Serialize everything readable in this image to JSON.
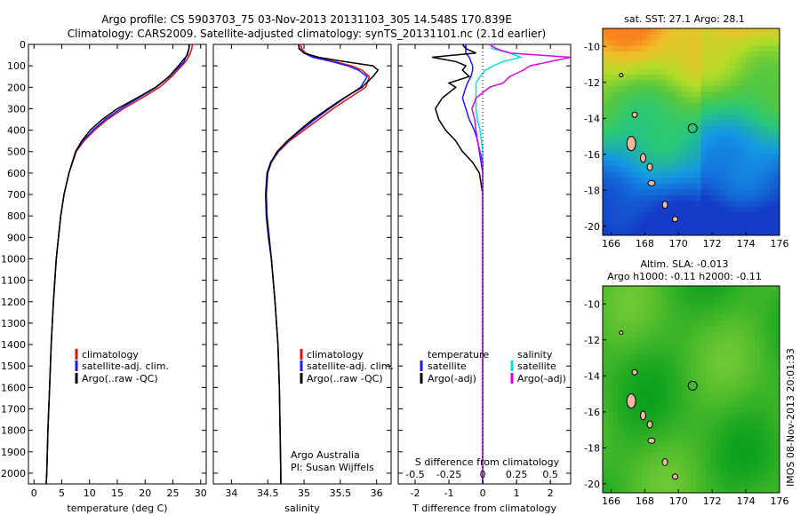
{
  "header": {
    "line1": "Argo profile: CS 5903703_75 03-Nov-2013 20131103_305 14.548S 170.839E",
    "line2": "Climatology: CARS2009. Satellite-adjusted climatology: synTS_20131101.nc (2.1d earlier)"
  },
  "side_text": "IMOS 08-Nov-2013 20:01:33",
  "colors": {
    "climatology": "#e01010",
    "satellite": "#1a1aff",
    "argo": "#000000",
    "sal_satellite": "#00e0e0",
    "sal_argo": "#e000e0",
    "argo_site": "#000000",
    "land": "#f0b8a0"
  },
  "chart_data": [
    {
      "id": "temperature",
      "type": "line",
      "xlabel": "temperature (deg C)",
      "ylabel": "",
      "xlim": [
        -1,
        31
      ],
      "ylim": [
        2050,
        0
      ],
      "xticks": [
        0,
        5,
        10,
        15,
        20,
        25,
        30
      ],
      "yticks": [
        0,
        100,
        200,
        300,
        400,
        500,
        600,
        700,
        800,
        900,
        1000,
        1100,
        1200,
        1300,
        1400,
        1500,
        1600,
        1700,
        1800,
        1900,
        2000
      ],
      "legend": [
        "climatology",
        "satellite-adj. clim.",
        "Argo(..raw -QC)"
      ],
      "depth": [
        0,
        20,
        50,
        80,
        100,
        150,
        200,
        250,
        300,
        350,
        400,
        450,
        500,
        600,
        700,
        800,
        900,
        1000,
        1200,
        1400,
        1600,
        1800,
        2000,
        2050
      ],
      "series": [
        {
          "name": "climatology",
          "color": "#e01010",
          "values": [
            28.5,
            28.4,
            28.0,
            27.3,
            26.6,
            24.8,
            22.6,
            19.4,
            16.1,
            13.2,
            10.9,
            9.0,
            7.6,
            6.3,
            5.4,
            4.8,
            4.4,
            4.0,
            3.5,
            3.1,
            2.8,
            2.5,
            2.3,
            2.2
          ]
        },
        {
          "name": "satellite-adj. clim.",
          "color": "#1a1aff",
          "values": [
            28.0,
            27.9,
            27.5,
            27.0,
            26.3,
            24.4,
            22.0,
            18.8,
            15.6,
            12.8,
            10.6,
            8.8,
            7.5,
            6.3,
            5.4,
            4.8,
            4.4,
            4.0,
            3.5,
            3.1,
            2.8,
            2.5,
            2.3,
            2.2
          ]
        },
        {
          "name": "Argo(..raw -QC)",
          "color": "#000000",
          "values": [
            27.9,
            27.9,
            27.6,
            26.6,
            26.0,
            24.3,
            21.9,
            18.5,
            15.0,
            12.3,
            10.1,
            8.6,
            7.5,
            6.3,
            5.4,
            4.8,
            4.4,
            4.0,
            3.5,
            3.1,
            2.8,
            2.5,
            2.3,
            2.2
          ]
        }
      ]
    },
    {
      "id": "salinity",
      "type": "line",
      "xlabel": "salinity",
      "xlim": [
        33.75,
        36.2
      ],
      "ylim": [
        2050,
        0
      ],
      "xticks": [
        34,
        34.5,
        35,
        35.5,
        36
      ],
      "xticklabels": [
        "34",
        "34.5",
        "35",
        "35.5",
        "36"
      ],
      "legend": [
        "climatology",
        "satellite-adj. clim.",
        "Argo(..raw -QC)"
      ],
      "annotation": [
        "Argo Australia",
        "PI: Susan Wijffels"
      ],
      "depth": [
        0,
        20,
        40,
        60,
        80,
        100,
        120,
        150,
        200,
        250,
        300,
        350,
        400,
        450,
        500,
        550,
        600,
        700,
        800,
        900,
        1000,
        1200,
        1400,
        1600,
        1800,
        2000,
        2050
      ],
      "series": [
        {
          "name": "climatology",
          "color": "#e01010",
          "values": [
            34.95,
            34.97,
            35.02,
            35.15,
            35.42,
            35.65,
            35.8,
            35.9,
            35.85,
            35.62,
            35.4,
            35.2,
            35.0,
            34.8,
            34.65,
            34.55,
            34.5,
            34.48,
            34.49,
            34.52,
            34.55,
            34.6,
            34.64,
            34.66,
            34.67,
            34.68,
            34.68
          ]
        },
        {
          "name": "satellite-adj. clim.",
          "color": "#1a1aff",
          "values": [
            34.92,
            34.94,
            35.0,
            35.12,
            35.38,
            35.6,
            35.75,
            35.87,
            35.78,
            35.56,
            35.35,
            35.15,
            34.96,
            34.78,
            34.64,
            34.55,
            34.5,
            34.48,
            34.49,
            34.52,
            34.55,
            34.6,
            34.64,
            34.66,
            34.67,
            34.68,
            34.68
          ]
        },
        {
          "name": "Argo(..raw -QC)",
          "color": "#000000",
          "values": [
            34.93,
            34.93,
            35.0,
            35.2,
            35.55,
            35.95,
            36.02,
            35.95,
            35.8,
            35.55,
            35.33,
            35.12,
            34.94,
            34.77,
            34.63,
            34.54,
            34.49,
            34.47,
            34.48,
            34.51,
            34.55,
            34.6,
            34.64,
            34.66,
            34.67,
            34.68,
            34.68
          ]
        }
      ]
    },
    {
      "id": "difference",
      "type": "line",
      "xlabel": "T difference from climatology",
      "xlabel2": "S difference from climatology",
      "xlim": [
        -2.5,
        2.6
      ],
      "ylim": [
        2050,
        0
      ],
      "xticks": [
        -2,
        -1,
        0,
        1,
        2
      ],
      "xticks2": [
        -0.5,
        -0.25,
        0,
        0.25,
        0.5
      ],
      "xticklabels2": [
        "-0.5",
        "-0.25",
        "0",
        "0.25",
        "0.5"
      ],
      "legend_headers": [
        "temperature",
        "salinity"
      ],
      "legend": [
        "satellite",
        "Argo(-adj)",
        "satellite",
        "Argo(-adj)"
      ],
      "depth": [
        0,
        20,
        40,
        60,
        80,
        100,
        120,
        150,
        180,
        200,
        250,
        300,
        350,
        400,
        450,
        500,
        550,
        600,
        700,
        800,
        1000,
        1200,
        1500,
        2000,
        2050
      ],
      "series": [
        {
          "name": "T satellite",
          "color": "#1a1aff",
          "values": [
            -0.5,
            -0.5,
            -0.5,
            -0.4,
            -0.35,
            -0.3,
            -0.3,
            -0.35,
            -0.45,
            -0.5,
            -0.6,
            -0.5,
            -0.4,
            -0.25,
            -0.15,
            -0.1,
            -0.05,
            0,
            0,
            0,
            0,
            0,
            0,
            0,
            0
          ]
        },
        {
          "name": "T Argo(-adj)",
          "color": "#000000",
          "values": [
            -0.6,
            -0.5,
            -0.2,
            -1.5,
            -0.8,
            -0.5,
            -0.6,
            -0.4,
            -1.0,
            -0.8,
            -1.2,
            -1.4,
            -1.3,
            -1.1,
            -0.8,
            -0.6,
            -0.3,
            -0.1,
            0,
            0,
            0,
            0,
            0,
            0,
            0
          ]
        },
        {
          "name": "S satellite",
          "color": "#00e0e0",
          "values": [
            0.06,
            0.07,
            0.2,
            0.28,
            0.15,
            0.08,
            0.02,
            -0.02,
            -0.05,
            -0.05,
            -0.05,
            -0.05,
            -0.04,
            -0.02,
            -0.01,
            0,
            0,
            0,
            0,
            0,
            0,
            0,
            0,
            0,
            0
          ]
        },
        {
          "name": "S Argo(-adj)",
          "color": "#e000e0",
          "values": [
            0.05,
            0.1,
            0.2,
            0.65,
            0.5,
            0.35,
            0.3,
            0.2,
            0.15,
            0.05,
            -0.05,
            -0.08,
            -0.06,
            -0.05,
            -0.04,
            -0.02,
            0,
            0,
            0,
            0,
            0,
            0,
            0,
            0,
            0
          ]
        }
      ]
    },
    {
      "id": "sst_map",
      "type": "heatmap",
      "title": "sat. SST: 27.1  Argo: 28.1",
      "xlim": [
        165.5,
        176
      ],
      "ylim": [
        -20.5,
        -9
      ],
      "xticks": [
        166,
        168,
        170,
        172,
        174,
        176
      ],
      "yticks": [
        -10,
        -12,
        -14,
        -16,
        -18,
        -20
      ],
      "argo_position": {
        "lon": 170.839,
        "lat": -14.548
      }
    },
    {
      "id": "sla_map",
      "type": "heatmap",
      "title": "Altim. SLA: -0.013",
      "subtitle": "Argo h1000: -0.11  h2000: -0.11",
      "xlim": [
        165.5,
        176
      ],
      "ylim": [
        -20.5,
        -9
      ],
      "xticks": [
        166,
        168,
        170,
        172,
        174,
        176
      ],
      "yticks": [
        -10,
        -12,
        -14,
        -16,
        -18,
        -20
      ],
      "argo_position": {
        "lon": 170.839,
        "lat": -14.548
      }
    }
  ]
}
